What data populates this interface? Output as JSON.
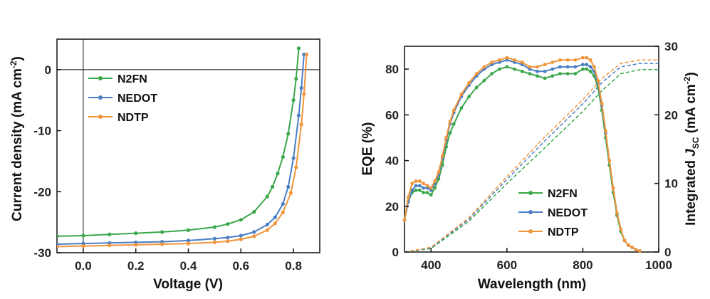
{
  "chart_data": [
    {
      "type": "line",
      "title": "",
      "xlabel": "Voltage (V)",
      "ylabel": "Current density (mA cm",
      "ylabel_sup": "-2",
      "ylabel_close": ")",
      "xlim": [
        -0.1,
        0.9
      ],
      "ylim": [
        -30,
        5
      ],
      "xticks": [
        0.0,
        0.2,
        0.4,
        0.6,
        0.8
      ],
      "xtick_labels": [
        "0.0",
        "0.2",
        "0.4",
        "0.6",
        "0.8"
      ],
      "yticks": [
        0,
        -10,
        -20,
        -30
      ],
      "ytick_labels": [
        "0",
        "-10",
        "-20",
        "-30"
      ],
      "legend_position": "upper-left",
      "series": [
        {
          "name": "N2FN",
          "color": "#3aa84a",
          "x": [
            -0.1,
            0.0,
            0.1,
            0.2,
            0.3,
            0.4,
            0.5,
            0.55,
            0.6,
            0.65,
            0.7,
            0.72,
            0.74,
            0.76,
            0.78,
            0.8,
            0.81,
            0.82
          ],
          "y": [
            -27.3,
            -27.2,
            -27.0,
            -26.8,
            -26.6,
            -26.3,
            -25.8,
            -25.3,
            -24.6,
            -23.3,
            -20.8,
            -19.2,
            -17.0,
            -14.3,
            -10.5,
            -5.0,
            -1.5,
            3.5
          ]
        },
        {
          "name": "NEDOT",
          "color": "#4a7fc4",
          "x": [
            -0.1,
            0.0,
            0.1,
            0.2,
            0.3,
            0.4,
            0.5,
            0.55,
            0.6,
            0.65,
            0.7,
            0.73,
            0.76,
            0.78,
            0.8,
            0.82,
            0.83,
            0.84
          ],
          "y": [
            -28.6,
            -28.5,
            -28.4,
            -28.3,
            -28.2,
            -28.0,
            -27.7,
            -27.5,
            -27.2,
            -26.6,
            -25.4,
            -24.2,
            -22.0,
            -19.2,
            -14.5,
            -7.5,
            -3.0,
            2.5
          ]
        },
        {
          "name": "NDTP",
          "color": "#f0953a",
          "x": [
            -0.1,
            0.0,
            0.1,
            0.2,
            0.3,
            0.4,
            0.5,
            0.55,
            0.6,
            0.65,
            0.7,
            0.73,
            0.76,
            0.79,
            0.81,
            0.83,
            0.84,
            0.85
          ],
          "y": [
            -29.0,
            -28.9,
            -28.8,
            -28.7,
            -28.6,
            -28.5,
            -28.3,
            -28.1,
            -27.8,
            -27.3,
            -26.3,
            -25.2,
            -23.4,
            -20.2,
            -16.0,
            -9.0,
            -4.0,
            2.5
          ]
        }
      ]
    },
    {
      "type": "line",
      "title": "",
      "xlabel": "Wavelength (nm)",
      "ylabel": "EQE (%)",
      "y2label": "Integrated ",
      "y2label_j": "J",
      "y2label_sub": "SC",
      "y2label_unit": " (mA cm",
      "y2label_sup": "-2",
      "y2label_close": ")",
      "xlim": [
        330,
        1000
      ],
      "ylim": [
        0,
        90
      ],
      "y2lim": [
        0,
        30
      ],
      "xticks": [
        400,
        600,
        800,
        1000
      ],
      "xtick_labels": [
        "400",
        "600",
        "800",
        "1000"
      ],
      "yticks": [
        0,
        20,
        40,
        60,
        80
      ],
      "ytick_labels": [
        "0",
        "20",
        "40",
        "60",
        "80"
      ],
      "y2ticks": [
        0,
        10,
        20,
        30
      ],
      "y2tick_labels": [
        "0",
        "10",
        "20",
        "30"
      ],
      "legend_position": "lower-center",
      "series": [
        {
          "name": "N2FN",
          "color": "#3aa84a",
          "x": [
            330,
            340,
            350,
            360,
            370,
            380,
            390,
            400,
            410,
            420,
            430,
            440,
            450,
            460,
            480,
            500,
            520,
            540,
            560,
            580,
            600,
            620,
            640,
            660,
            680,
            700,
            720,
            740,
            760,
            780,
            800,
            810,
            820,
            830,
            840,
            850,
            860,
            870,
            880,
            890,
            900,
            910,
            920,
            930,
            940,
            950
          ],
          "y": [
            14,
            22,
            26,
            27,
            27,
            26,
            26,
            25,
            28,
            32,
            38,
            46,
            52,
            56,
            63,
            68,
            72,
            75,
            78,
            80,
            81,
            80,
            79,
            78,
            77,
            76,
            77,
            78,
            78,
            78,
            80,
            80,
            79,
            77,
            72,
            62,
            50,
            38,
            26,
            16,
            9,
            5,
            3,
            2,
            1,
            0.5
          ],
          "jsc_x": [
            330,
            400,
            500,
            600,
            700,
            800,
            850,
            900,
            950,
            1000
          ],
          "jsc_y": [
            0,
            0.5,
            4.5,
            10.0,
            15.2,
            20.5,
            23.5,
            26.0,
            26.6,
            26.6
          ]
        },
        {
          "name": "NEDOT",
          "color": "#4a7fc4",
          "x": [
            330,
            340,
            350,
            360,
            370,
            380,
            390,
            400,
            410,
            420,
            430,
            440,
            450,
            460,
            480,
            500,
            520,
            540,
            560,
            580,
            600,
            620,
            640,
            660,
            680,
            700,
            720,
            740,
            760,
            780,
            800,
            810,
            820,
            830,
            840,
            850,
            860,
            870,
            880,
            890,
            900,
            910,
            920,
            930,
            940,
            950
          ],
          "y": [
            14,
            22,
            27,
            29,
            29,
            28,
            28,
            27,
            30,
            34,
            41,
            49,
            56,
            61,
            68,
            73,
            77,
            80,
            82,
            83,
            84,
            83,
            82,
            80,
            79,
            79,
            80,
            81,
            81,
            81,
            82,
            82,
            81,
            79,
            74,
            64,
            52,
            40,
            28,
            17,
            10,
            5,
            3,
            2,
            1,
            0.5
          ],
          "jsc_x": [
            330,
            400,
            500,
            600,
            700,
            800,
            850,
            900,
            950,
            1000
          ],
          "jsc_y": [
            0,
            0.6,
            4.8,
            10.6,
            16.2,
            21.6,
            24.7,
            27.0,
            27.5,
            27.5
          ]
        },
        {
          "name": "NDTP",
          "color": "#f0953a",
          "x": [
            330,
            340,
            350,
            360,
            370,
            380,
            390,
            400,
            410,
            420,
            430,
            440,
            450,
            460,
            480,
            500,
            520,
            540,
            560,
            580,
            600,
            620,
            640,
            660,
            680,
            700,
            720,
            740,
            760,
            780,
            800,
            810,
            820,
            830,
            840,
            850,
            860,
            870,
            880,
            890,
            900,
            910,
            920,
            930,
            940,
            950
          ],
          "y": [
            14,
            24,
            30,
            31,
            31,
            30,
            29,
            28,
            31,
            35,
            42,
            50,
            57,
            62,
            69,
            74,
            78,
            81,
            83,
            84,
            85,
            84,
            83,
            81,
            81,
            82,
            83,
            84,
            84,
            84,
            85,
            85,
            84,
            81,
            75,
            65,
            53,
            40,
            28,
            17,
            10,
            5,
            3,
            2,
            1,
            0.5
          ],
          "jsc_x": [
            330,
            400,
            500,
            600,
            700,
            800,
            850,
            900,
            950,
            1000
          ],
          "jsc_y": [
            0,
            0.7,
            5.0,
            11.0,
            16.8,
            22.2,
            25.3,
            27.5,
            28.0,
            28.0
          ]
        }
      ]
    }
  ]
}
